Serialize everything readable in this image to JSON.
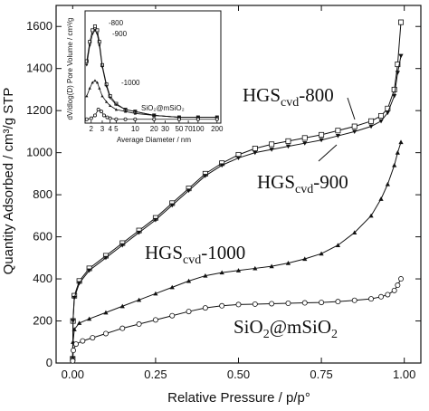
{
  "chart_data": {
    "main": {
      "type": "line",
      "xlabel": "Relative Pressure / p/p°",
      "ylabel": "Quantity Adsorbed / cm³/g STP",
      "xlim": [
        -0.05,
        1.05
      ],
      "ylim": [
        0,
        1700
      ],
      "xticks": [
        "0.00",
        "0.25",
        "0.50",
        "0.75",
        "1.00"
      ],
      "yticks": [
        "0",
        "200",
        "400",
        "600",
        "800",
        "1000",
        "1200",
        "1400",
        "1600"
      ],
      "series": [
        {
          "name": "HGScvd-800",
          "label_main": "HGS",
          "label_sub": "cvd",
          "label_tail": "-800",
          "marker": "open-square",
          "x": [
            0.0,
            0.001,
            0.005,
            0.02,
            0.05,
            0.1,
            0.15,
            0.2,
            0.25,
            0.3,
            0.35,
            0.4,
            0.45,
            0.5,
            0.55,
            0.6,
            0.65,
            0.7,
            0.75,
            0.8,
            0.85,
            0.9,
            0.93,
            0.95,
            0.97,
            0.98,
            0.99
          ],
          "y": [
            20,
            200,
            320,
            390,
            450,
            510,
            570,
            630,
            690,
            760,
            830,
            900,
            950,
            990,
            1020,
            1040,
            1055,
            1070,
            1085,
            1105,
            1125,
            1150,
            1175,
            1210,
            1300,
            1420,
            1620
          ]
        },
        {
          "name": "HGScvd-900",
          "label_main": "HGS",
          "label_sub": "cvd",
          "label_tail": "-900",
          "marker": "filled-triangle-down",
          "x": [
            0.0,
            0.001,
            0.005,
            0.02,
            0.05,
            0.1,
            0.15,
            0.2,
            0.25,
            0.3,
            0.35,
            0.4,
            0.45,
            0.5,
            0.55,
            0.6,
            0.65,
            0.7,
            0.75,
            0.8,
            0.85,
            0.9,
            0.93,
            0.95,
            0.97,
            0.98,
            0.99
          ],
          "y": [
            20,
            200,
            310,
            380,
            440,
            500,
            560,
            620,
            680,
            750,
            820,
            890,
            940,
            975,
            1000,
            1015,
            1030,
            1045,
            1060,
            1080,
            1100,
            1125,
            1150,
            1190,
            1270,
            1380,
            1460
          ]
        },
        {
          "name": "HGScvd-1000",
          "label_main": "HGS",
          "label_sub": "cvd",
          "label_tail": "-1000",
          "marker": "filled-triangle-up",
          "x": [
            0.0,
            0.001,
            0.005,
            0.02,
            0.05,
            0.1,
            0.15,
            0.2,
            0.25,
            0.3,
            0.35,
            0.4,
            0.45,
            0.5,
            0.55,
            0.6,
            0.65,
            0.7,
            0.75,
            0.8,
            0.85,
            0.9,
            0.93,
            0.95,
            0.97,
            0.98,
            0.99
          ],
          "y": [
            10,
            100,
            160,
            190,
            210,
            240,
            270,
            300,
            330,
            360,
            390,
            415,
            430,
            440,
            450,
            460,
            475,
            495,
            520,
            560,
            620,
            700,
            780,
            850,
            940,
            1000,
            1050
          ]
        },
        {
          "name": "SiO2@mSiO2",
          "label_main": "SiO",
          "label_sub": "2",
          "label_tail": "@mSiO",
          "label_sub2": "2",
          "marker": "open-circle",
          "x": [
            0.0,
            0.002,
            0.01,
            0.03,
            0.06,
            0.1,
            0.15,
            0.2,
            0.25,
            0.3,
            0.35,
            0.4,
            0.45,
            0.5,
            0.55,
            0.6,
            0.65,
            0.7,
            0.75,
            0.8,
            0.85,
            0.9,
            0.93,
            0.95,
            0.97,
            0.98,
            0.99
          ],
          "y": [
            10,
            60,
            90,
            105,
            120,
            140,
            165,
            185,
            205,
            225,
            245,
            262,
            272,
            278,
            280,
            282,
            284,
            286,
            288,
            292,
            298,
            305,
            315,
            325,
            345,
            370,
            400
          ]
        }
      ]
    },
    "inset": {
      "type": "line",
      "xlabel": "Average Diameter / nm",
      "ylabel": "dV/dlog(D) Pore Volume / cm³/g",
      "xscale": "log",
      "xlim": [
        1.6,
        230
      ],
      "ylim": [
        -0.02,
        0.56
      ],
      "xticks": [
        "2",
        "3",
        "4",
        "5",
        "10",
        "20",
        "30",
        "50",
        "70",
        "100",
        "200"
      ],
      "tick_values": [
        2,
        3,
        4,
        5,
        10,
        20,
        30,
        50,
        70,
        100,
        200
      ],
      "annotations": [
        "-800",
        "-900",
        "-1000",
        "SiO₂@mSiO₂"
      ],
      "series": [
        {
          "name": "-800",
          "marker": "open-square",
          "x": [
            1.7,
            1.9,
            2.1,
            2.3,
            2.5,
            2.7,
            3.0,
            3.5,
            4.0,
            5.0,
            7.0,
            10,
            20,
            50,
            100,
            200
          ],
          "y": [
            0.3,
            0.4,
            0.46,
            0.48,
            0.46,
            0.4,
            0.28,
            0.18,
            0.12,
            0.08,
            0.05,
            0.04,
            0.02,
            0.01,
            0.01,
            0.01
          ]
        },
        {
          "name": "-900",
          "marker": "filled-triangle-down",
          "x": [
            1.7,
            1.9,
            2.1,
            2.3,
            2.5,
            2.7,
            3.0,
            3.5,
            4.0,
            5.0,
            7.0,
            10,
            20,
            50,
            100,
            200
          ],
          "y": [
            0.28,
            0.38,
            0.44,
            0.46,
            0.44,
            0.38,
            0.27,
            0.17,
            0.11,
            0.075,
            0.05,
            0.04,
            0.02,
            0.01,
            0.01,
            0.01
          ]
        },
        {
          "name": "-1000",
          "marker": "filled-triangle-up",
          "x": [
            1.7,
            1.9,
            2.1,
            2.3,
            2.5,
            2.7,
            3.0,
            3.5,
            4.0,
            5.0,
            7.0,
            10,
            20,
            50,
            100,
            200
          ],
          "y": [
            0.12,
            0.16,
            0.19,
            0.2,
            0.19,
            0.16,
            0.12,
            0.09,
            0.07,
            0.05,
            0.04,
            0.03,
            0.02,
            0.01,
            0.01,
            0.01
          ]
        },
        {
          "name": "SiO₂@mSiO₂",
          "marker": "open-circle",
          "x": [
            1.7,
            2.0,
            2.3,
            2.6,
            2.9,
            3.2,
            3.6,
            4.0,
            5.0,
            7.0,
            10,
            20,
            50,
            100,
            200
          ],
          "y": [
            0.0,
            0.005,
            0.02,
            0.05,
            0.04,
            0.02,
            0.01,
            0.005,
            0.0,
            0.0,
            0.0,
            0.0,
            0.0,
            0.0,
            0.0
          ]
        }
      ]
    }
  }
}
